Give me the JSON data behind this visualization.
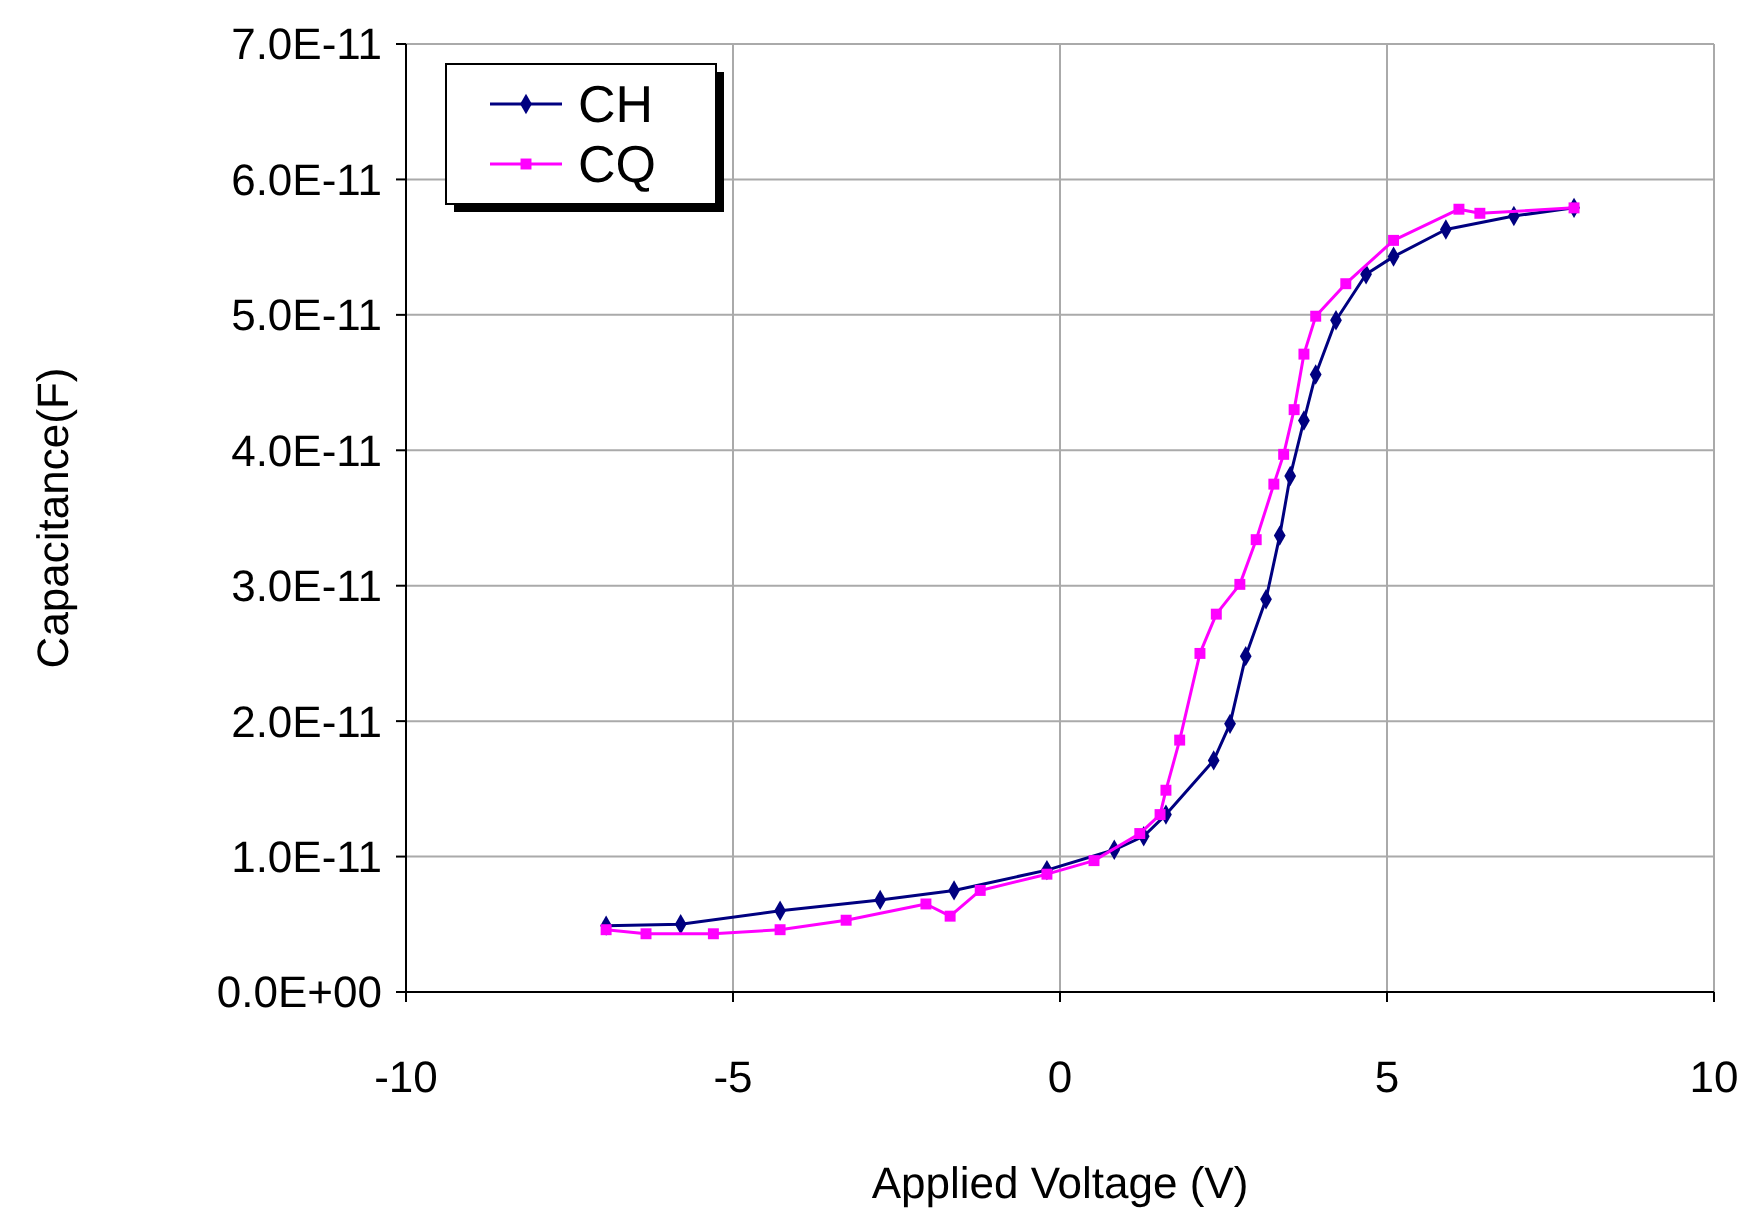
{
  "chart_data": {
    "type": "line",
    "xlabel": "Applied Voltage (V)",
    "ylabel": "Capacitance(F)",
    "xlim": [
      -10,
      10
    ],
    "xticks": [
      -10,
      -5,
      0,
      5,
      10
    ],
    "ylim": [
      0,
      7e-11
    ],
    "yticks": [
      {
        "value": 0,
        "label": "0.0E+00"
      },
      {
        "value": 1e-11,
        "label": "1.0E-11"
      },
      {
        "value": 2e-11,
        "label": "2.0E-11"
      },
      {
        "value": 3e-11,
        "label": "3.0E-11"
      },
      {
        "value": 4e-11,
        "label": "4.0E-11"
      },
      {
        "value": 5e-11,
        "label": "5.0E-11"
      },
      {
        "value": 6e-11,
        "label": "6.0E-11"
      },
      {
        "value": 7e-11,
        "label": "7.0E-11"
      }
    ],
    "grid": true,
    "legend": "top left",
    "line_style": "solid",
    "series": [
      {
        "name": "CH",
        "color": "#000080",
        "marker": "diamond",
        "x": [
          -6.94,
          -5.8,
          -4.28,
          -2.75,
          -1.62,
          -0.2,
          0.83,
          1.28,
          1.62,
          2.35,
          2.6,
          2.84,
          3.15,
          3.36,
          3.52,
          3.73,
          3.91,
          4.22,
          4.68,
          5.1,
          5.9,
          6.94,
          7.86
        ],
        "values": [
          4.9e-12,
          5e-12,
          6e-12,
          6.8e-12,
          7.5e-12,
          9e-12,
          1.05e-11,
          1.15e-11,
          1.31e-11,
          1.71e-11,
          1.98e-11,
          2.48e-11,
          2.9e-11,
          3.37e-11,
          3.81e-11,
          4.22e-11,
          4.56e-11,
          4.96e-11,
          5.3e-11,
          5.43e-11,
          5.63e-11,
          5.73e-11,
          5.79e-11
        ]
      },
      {
        "name": "CQ",
        "color": "#ff00ff",
        "marker": "square",
        "x": [
          -6.94,
          -6.33,
          -5.3,
          -4.28,
          -3.27,
          -2.05,
          -1.68,
          -1.22,
          -0.2,
          0.52,
          1.22,
          1.53,
          1.62,
          1.83,
          2.14,
          2.39,
          2.75,
          3.0,
          3.27,
          3.42,
          3.58,
          3.73,
          3.91,
          4.37,
          5.1,
          6.1,
          6.42,
          7.86
        ],
        "values": [
          4.6e-12,
          4.3e-12,
          4.3e-12,
          4.6e-12,
          5.3e-12,
          6.5e-12,
          5.6e-12,
          7.5e-12,
          8.7e-12,
          9.7e-12,
          1.17e-11,
          1.31e-11,
          1.49e-11,
          1.86e-11,
          2.5e-11,
          2.79e-11,
          3.01e-11,
          3.34e-11,
          3.75e-11,
          3.97e-11,
          4.3e-11,
          4.71e-11,
          4.99e-11,
          5.23e-11,
          5.55e-11,
          5.78e-11,
          5.75e-11,
          5.79e-11
        ]
      }
    ]
  }
}
